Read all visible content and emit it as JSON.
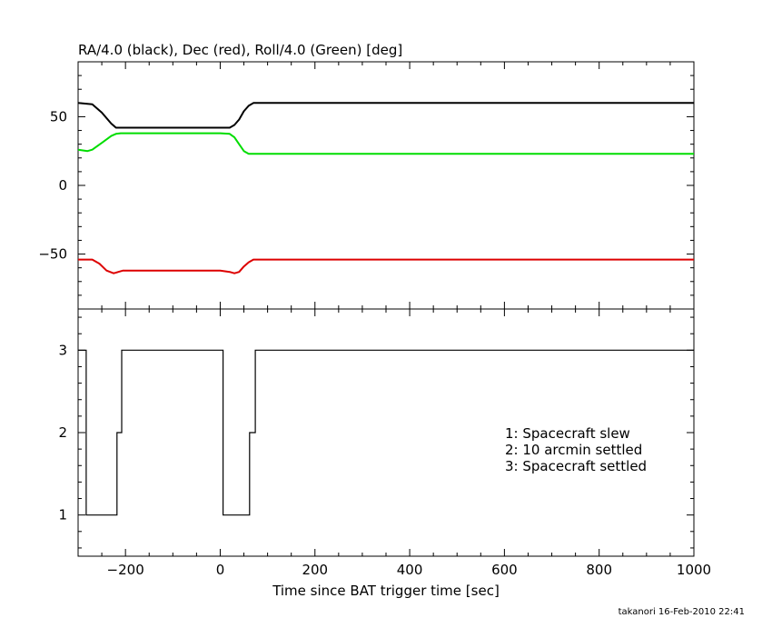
{
  "chart_data": [
    {
      "type": "line",
      "title": "RA/4.0 (black), Dec (red), Roll/4.0 (Green) [deg]",
      "xlim": [
        -300,
        1000
      ],
      "ylim": [
        -90,
        90
      ],
      "yticks": [
        {
          "value": 50,
          "label": "50"
        },
        {
          "value": 0,
          "label": "0"
        },
        {
          "value": -50,
          "label": "−50"
        }
      ],
      "series": [
        {
          "color": "#000000",
          "x": [
            -300,
            -270,
            -250,
            -230,
            -220,
            -200,
            0,
            20,
            30,
            40,
            50,
            60,
            70,
            1000
          ],
          "y": [
            60,
            59,
            53,
            45,
            42,
            42,
            42,
            42,
            44,
            48,
            54,
            58,
            60,
            60
          ]
        },
        {
          "color": "#00dd00",
          "x": [
            -300,
            -280,
            -270,
            -250,
            -230,
            -220,
            -210,
            0,
            20,
            30,
            40,
            50,
            60,
            70,
            1000
          ],
          "y": [
            26,
            25,
            26,
            31,
            36,
            37.5,
            38,
            38,
            37.5,
            35,
            30,
            25,
            23,
            23,
            23
          ]
        },
        {
          "color": "#dd0000",
          "x": [
            -300,
            -270,
            -255,
            -240,
            -225,
            -215,
            -205,
            0,
            20,
            30,
            40,
            50,
            60,
            70,
            1000
          ],
          "y": [
            -54,
            -54,
            -57,
            -62,
            -64,
            -63,
            -62,
            -62,
            -63,
            -64,
            -63,
            -59,
            -56,
            -54,
            -54
          ]
        }
      ]
    },
    {
      "type": "line",
      "xlabel": "Time since BAT trigger time [sec]",
      "xlim": [
        -300,
        1000
      ],
      "ylim": [
        0.5,
        3.5
      ],
      "xticks": [
        {
          "value": -200,
          "label": "−200"
        },
        {
          "value": 0,
          "label": "0"
        },
        {
          "value": 200,
          "label": "200"
        },
        {
          "value": 400,
          "label": "400"
        },
        {
          "value": 600,
          "label": "600"
        },
        {
          "value": 800,
          "label": "800"
        },
        {
          "value": 1000,
          "label": "1000"
        }
      ],
      "yticks": [
        {
          "value": 3,
          "label": "3"
        },
        {
          "value": 2,
          "label": "2"
        },
        {
          "value": 1,
          "label": "1"
        }
      ],
      "series": [
        {
          "color": "#000000",
          "step": true,
          "x": [
            -300,
            -283,
            -218,
            -208,
            6,
            62,
            74,
            1000
          ],
          "y": [
            3,
            1,
            2,
            3,
            1,
            2,
            3,
            3
          ]
        }
      ],
      "annotations": [
        "1: Spacecraft slew",
        "2: 10 arcmin settled",
        "3: Spacecraft settled"
      ]
    }
  ],
  "footer": "takanori 16-Feb-2010 22:41"
}
